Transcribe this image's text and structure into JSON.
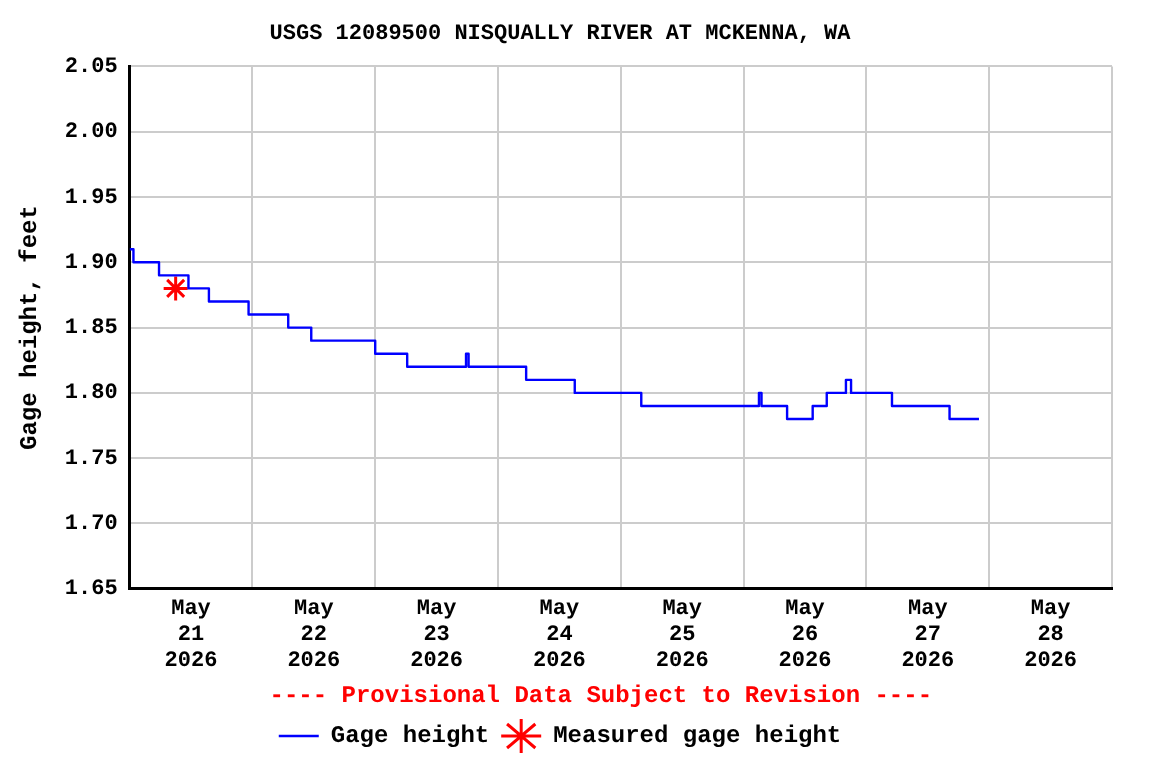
{
  "chart_data": {
    "type": "step",
    "title": "USGS 12089500 NISQUALLY RIVER AT MCKENNA, WA",
    "ylabel": "Gage height, feet",
    "annotations": [
      "---- Provisional Data Subject to Revision ----"
    ],
    "series": [
      {
        "name": "Gage height",
        "color": "#0000ff",
        "marker": "none",
        "x": [
          "2026-05-21T00:00",
          "2026-05-21T00:45",
          "2026-05-21T05:45",
          "2026-05-21T11:30",
          "2026-05-21T15:30",
          "2026-05-21T23:15",
          "2026-05-22T07:00",
          "2026-05-22T11:30",
          "2026-05-23T00:00",
          "2026-05-23T06:15",
          "2026-05-23T17:45",
          "2026-05-23T18:15",
          "2026-05-24T05:30",
          "2026-05-24T15:00",
          "2026-05-25T04:00",
          "2026-05-26T03:00",
          "2026-05-26T03:30",
          "2026-05-26T08:30",
          "2026-05-26T13:30",
          "2026-05-26T16:15",
          "2026-05-26T20:00",
          "2026-05-26T21:00",
          "2026-05-27T05:00",
          "2026-05-27T16:15",
          "2026-05-27T22:00"
        ],
        "values": [
          1.91,
          1.9,
          1.89,
          1.88,
          1.87,
          1.86,
          1.85,
          1.84,
          1.83,
          1.82,
          1.83,
          1.82,
          1.81,
          1.8,
          1.79,
          1.8,
          1.79,
          1.78,
          1.79,
          1.8,
          1.81,
          1.8,
          1.79,
          1.78,
          1.78
        ]
      },
      {
        "name": "Measured gage height",
        "type": "scatter",
        "color": "#ff0000",
        "marker": "cross",
        "x": [
          "2026-05-21T09:00"
        ],
        "values": [
          1.88
        ]
      }
    ],
    "xlim": [
      "2026-05-21T00:00",
      "2026-05-29T00:00"
    ],
    "xticks": [
      {
        "value": "2026-05-21T00:00",
        "label": null
      },
      {
        "value": "2026-05-21T12:00",
        "label": "May 21 2026"
      },
      {
        "value": "2026-05-22T00:00",
        "label": null
      },
      {
        "value": "2026-05-22T12:00",
        "label": "May 22 2026"
      },
      {
        "value": "2026-05-23T00:00",
        "label": null
      },
      {
        "value": "2026-05-23T12:00",
        "label": "May 23 2026"
      },
      {
        "value": "2026-05-24T00:00",
        "label": null
      },
      {
        "value": "2026-05-24T12:00",
        "label": "May 24 2026"
      },
      {
        "value": "2026-05-25T00:00",
        "label": null
      },
      {
        "value": "2026-05-25T12:00",
        "label": "May 25 2026"
      },
      {
        "value": "2026-05-26T00:00",
        "label": null
      },
      {
        "value": "2026-05-26T12:00",
        "label": "May 26 2026"
      },
      {
        "value": "2026-05-27T00:00",
        "label": null
      },
      {
        "value": "2026-05-27T12:00",
        "label": "May 27 2026"
      },
      {
        "value": "2026-05-28T00:00",
        "label": null
      },
      {
        "value": "2026-05-28T12:00",
        "label": "May 28 2026"
      },
      {
        "value": "2026-05-29T00:00",
        "label": null
      }
    ],
    "ylim": [
      1.65,
      2.05
    ],
    "yticks": [
      {
        "value": 1.65,
        "label": "1.65"
      },
      {
        "value": 1.7,
        "label": "1.70"
      },
      {
        "value": 1.75,
        "label": "1.75"
      },
      {
        "value": 1.8,
        "label": "1.80"
      },
      {
        "value": 1.85,
        "label": "1.85"
      },
      {
        "value": 1.9,
        "label": "1.90"
      },
      {
        "value": 1.95,
        "label": "1.95"
      },
      {
        "value": 2.0,
        "label": "2.00"
      },
      {
        "value": 2.05,
        "label": "2.05"
      }
    ],
    "grid": true,
    "legend": "bottom"
  }
}
